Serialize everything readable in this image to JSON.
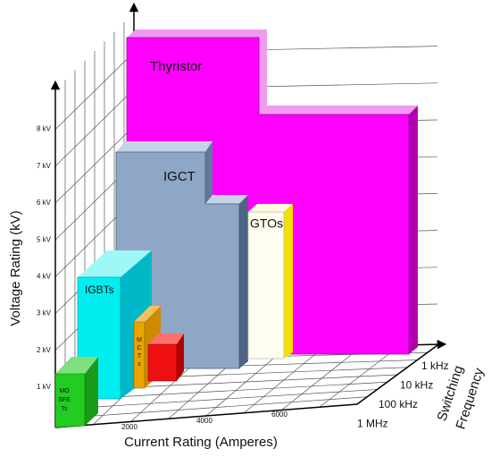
{
  "axes": {
    "voltage": {
      "label": "Voltage Rating (kV)",
      "ticks": [
        "1 kV",
        "2 kV",
        "3 kV",
        "4 kV",
        "5 kV",
        "6 kV",
        "7 kV",
        "8 kV"
      ]
    },
    "current": {
      "label": "Current Rating (Amperes)",
      "ticks": [
        "2000",
        "4000",
        "6000"
      ]
    },
    "frequency": {
      "label": [
        "Switching",
        "Frequency"
      ],
      "ticks": [
        "1 kHz",
        "10 kHz",
        "100 kHz",
        "1 MHz"
      ]
    }
  },
  "devices": [
    {
      "label": "Thyristor"
    },
    {
      "label": "IGCT"
    },
    {
      "label": "GTOs"
    },
    {
      "label": "IGBTs"
    },
    {
      "label": [
        "M",
        "C",
        "T",
        "s"
      ]
    },
    {
      "label": [
        "MO",
        "SFE",
        "Ts"
      ]
    }
  ]
}
